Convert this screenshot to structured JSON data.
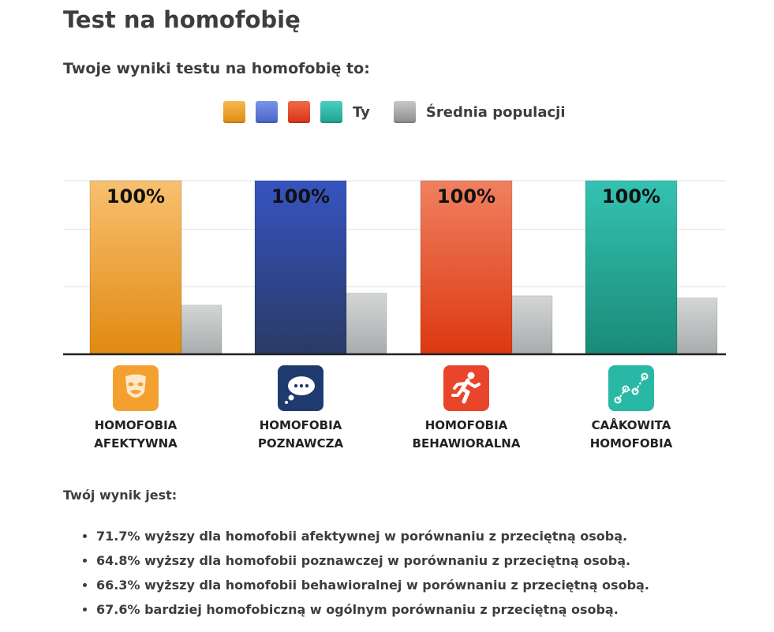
{
  "title": "Test na homofobię",
  "subtitle": "Twoje wyniki testu na homofobię to:",
  "legend": {
    "you_label": "Ty",
    "you_colors": [
      "#f0a030",
      "#5a78d8",
      "#e24a2a",
      "#2ab8a6"
    ],
    "population_label": "Średnia populacji",
    "population_color": "#9a9a9a"
  },
  "chart_data": {
    "type": "bar",
    "categories": [
      "HOMOFOBIA AFEKTYWNA",
      "HOMOFOBIA POZNAWCZA",
      "HOMOFOBIA BEHAWIORALNA",
      "CAÅKOWITA HOMOFOBIA"
    ],
    "category_lines": [
      [
        "HOMOFOBIA",
        "AFEKTYWNA"
      ],
      [
        "HOMOFOBIA",
        "POZNAWCZA"
      ],
      [
        "HOMOFOBIA",
        "BEHAWIORALNA"
      ],
      [
        "CAÅKOWITA",
        "HOMOFOBIA"
      ]
    ],
    "series": [
      {
        "name": "Ty",
        "values": [
          100,
          100,
          100,
          100
        ],
        "data_labels": [
          "100%",
          "100%",
          "100%",
          "100%"
        ]
      },
      {
        "name": "Średnia populacji",
        "values": [
          28.3,
          35.2,
          33.7,
          32.4
        ]
      }
    ],
    "ylim": [
      0,
      100
    ],
    "grid": true,
    "legend_position": "top",
    "bar_gradients": [
      [
        "#f8c070",
        "#e08a10"
      ],
      [
        "#3654c0",
        "#2a3a66"
      ],
      [
        "#f08060",
        "#dc3810"
      ],
      [
        "#34c2b2",
        "#1a8a78"
      ]
    ],
    "category_icons": [
      "theater-mask-icon",
      "thought-bubble-icon",
      "running-person-icon",
      "line-graph-icon"
    ],
    "icon_colors": [
      "#f4a030",
      "#1f3a6e",
      "#e8452a",
      "#2ab8a6"
    ]
  },
  "results": {
    "heading": "Twój wynik jest:",
    "items": [
      "71.7% wyższy dla homofobii afektywnej w porównaniu z przeciętną osobą.",
      "64.8% wyższy dla homofobii poznawczej w porównaniu z przeciętną osobą.",
      "66.3% wyższy dla homofobii behawioralnej w porównaniu z przeciętną osobą.",
      "67.6% bardziej homofobiczną w ogólnym porównaniu z przeciętną osobą."
    ]
  }
}
